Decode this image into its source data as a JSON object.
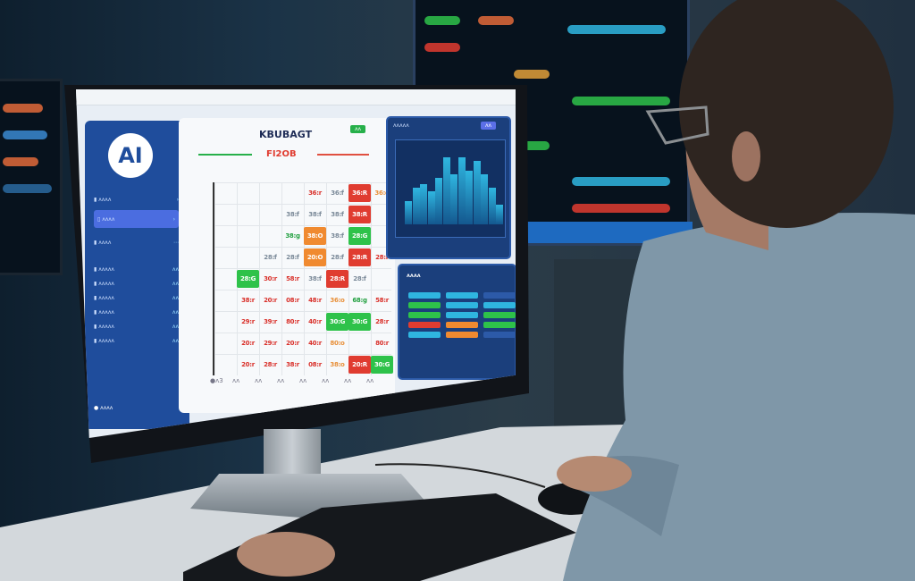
{
  "screen": {
    "sidebar": {
      "logo": "AI",
      "items": [
        {
          "label": "▮ ᴧᴧᴧᴧ",
          "value": "›"
        },
        {
          "label": "▯ ᴧᴧᴧᴧ",
          "value": "›"
        },
        {
          "label": "▮ ᴧᴧᴧᴧ",
          "value": "⋯"
        },
        {
          "label": "▮ ᴧᴧᴧᴧᴧ",
          "value": "ᴧᴧ"
        },
        {
          "label": "▮ ᴧᴧᴧᴧᴧ",
          "value": "ᴧᴧ"
        },
        {
          "label": "▮ ᴧᴧᴧᴧᴧ",
          "value": "ᴧᴧ"
        },
        {
          "label": "▮ ᴧᴧᴧᴧᴧ",
          "value": "ᴧᴧ"
        },
        {
          "label": "▮ ᴧᴧᴧᴧᴧ",
          "value": "ᴧᴧ"
        },
        {
          "label": "▮ ᴧᴧᴧᴧᴧ",
          "value": "ᴧᴧ"
        }
      ],
      "footer": "● ᴧᴧᴧᴧ"
    },
    "main": {
      "title": "KBUBAGT",
      "badge": "ᴧᴧ",
      "subtitle": "FI2OB",
      "grid": [
        [
          "",
          "",
          "",
          "",
          "36:r",
          "36:f",
          "36:R",
          "36:o"
        ],
        [
          "",
          "",
          "",
          "38:f",
          "38:f",
          "38:f",
          "38:R",
          ""
        ],
        [
          "",
          "",
          "",
          "38:g",
          "38:O",
          "38:f",
          "28:G",
          ""
        ],
        [
          "",
          "",
          "28:f",
          "28:f",
          "20:O",
          "28:f",
          "28:R",
          "28:r"
        ],
        [
          "",
          "28:G",
          "30:r",
          "58:r",
          "38:f",
          "28:R",
          "28:f",
          ""
        ],
        [
          "",
          "38:r",
          "20:r",
          "08:r",
          "48:r",
          "36:o",
          "68:g",
          "58:r"
        ],
        [
          "",
          "29:r",
          "39:r",
          "80:r",
          "40:r",
          "30:G",
          "30:G",
          "28:r"
        ],
        [
          "",
          "20:r",
          "29:r",
          "20:r",
          "40:r",
          "80:o",
          "",
          "80:r"
        ],
        [
          "",
          "20:r",
          "28:r",
          "38:r",
          "08:r",
          "38:o",
          "20:R",
          "30:G"
        ]
      ],
      "x_labels": [
        "●ᴧ3",
        "ᴧᴧ",
        "ᴧᴧ",
        "ᴧᴧ",
        "ᴧᴧ",
        "ᴧᴧ",
        "ᴧᴧ",
        "ᴧᴧ"
      ]
    },
    "chart_panel": {
      "title": "ᴧᴧᴧᴧᴧ",
      "button": "ᴧᴧ",
      "bar_levels": [
        0.35,
        0.55,
        0.6,
        0.5,
        0.7,
        1.0,
        0.75,
        1.0,
        0.8,
        0.95,
        0.75,
        0.55,
        0.3
      ]
    },
    "low_panel": {
      "title": "ᴧᴧᴧᴧ",
      "pill_colors": [
        "#2fb6e0",
        "#2ec24a",
        "#2ec24a",
        "#e03c30",
        "#2fb6e0",
        "#2fb6e0",
        "#2fb6e0",
        "#2fb6e0",
        "#f08a30",
        "#f08a30",
        "#2c5aa8",
        "#2fb6e0",
        "#2ec24a",
        "#2ec24a",
        "#2c5aa8"
      ]
    }
  },
  "colors": {
    "sidebar": "#1f4d9c",
    "red": "#e03c30",
    "green": "#2ec24a",
    "orange": "#f08a30",
    "cyan": "#2fb6e0"
  }
}
